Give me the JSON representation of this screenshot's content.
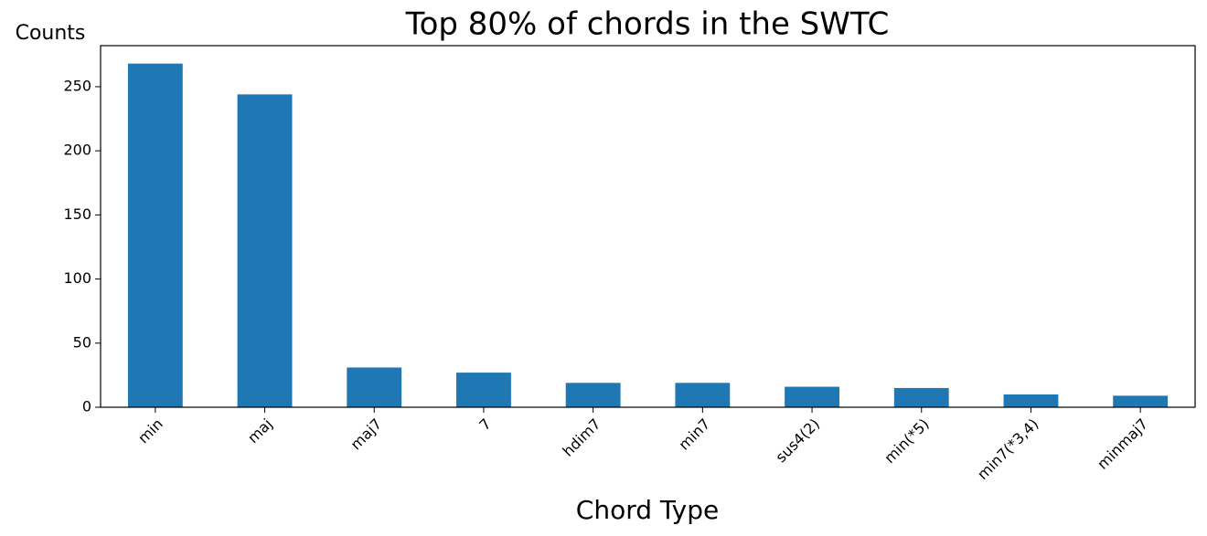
{
  "chart_data": {
    "type": "bar",
    "title": "Top 80% of chords in the SWTC",
    "x_label": "Chord Type",
    "y_label": "Counts",
    "categories": [
      "min",
      "maj",
      "maj7",
      "7",
      "hdim7",
      "min7",
      "sus4(2)",
      "min(*5)",
      "min7(*3,4)",
      "minmaj7"
    ],
    "values": [
      268,
      244,
      31,
      27,
      19,
      19,
      16,
      15,
      10,
      9
    ],
    "color": "#1f77b4",
    "ylim": [
      0,
      282
    ],
    "yticks": [
      0,
      50,
      100,
      150,
      200,
      250
    ],
    "grid": false
  }
}
